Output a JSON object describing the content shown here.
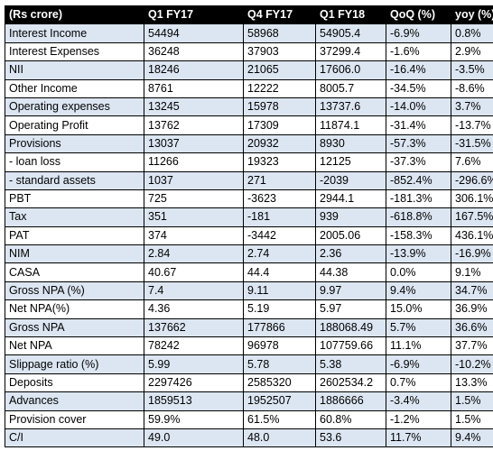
{
  "table": {
    "headers": [
      "(Rs crore)",
      "Q1 FY17",
      "Q4 FY17",
      "Q1 FY18",
      "QoQ (%)",
      "yoy (%)"
    ],
    "rows": [
      [
        "Interest Income",
        "54494",
        "58968",
        "54905.4",
        "-6.9%",
        "0.8%"
      ],
      [
        "Interest Expenses",
        "36248",
        "37903",
        "37299.4",
        "-1.6%",
        "2.9%"
      ],
      [
        "NII",
        "18246",
        "21065",
        "17606.0",
        "-16.4%",
        "-3.5%"
      ],
      [
        "Other Income",
        "8761",
        "12222",
        "8005.7",
        "-34.5%",
        "-8.6%"
      ],
      [
        "Operating expenses",
        "13245",
        "15978",
        "13737.6",
        "-14.0%",
        "3.7%"
      ],
      [
        "Operating Profit",
        "13762",
        "17309",
        "11874.1",
        "-31.4%",
        "-13.7%"
      ],
      [
        "Provisions",
        "13037",
        "20932",
        "8930",
        "-57.3%",
        "-31.5%"
      ],
      [
        "- loan loss",
        "11266",
        "19323",
        "12125",
        "-37.3%",
        "7.6%"
      ],
      [
        "- standard assets",
        "1037",
        "271",
        "-2039",
        "-852.4%",
        "-296.6%"
      ],
      [
        "PBT",
        "725",
        "-3623",
        "2944.1",
        "-181.3%",
        "306.1%"
      ],
      [
        "Tax",
        "351",
        "-181",
        "939",
        "-618.8%",
        "167.5%"
      ],
      [
        "PAT",
        "374",
        "-3442",
        "2005.06",
        "-158.3%",
        "436.1%"
      ],
      [
        "NIM",
        "2.84",
        "2.74",
        "2.36",
        "-13.9%",
        "-16.9%"
      ],
      [
        "CASA",
        "40.67",
        "44.4",
        "44.38",
        "0.0%",
        "9.1%"
      ],
      [
        "Gross NPA (%)",
        "7.4",
        "9.11",
        "9.97",
        "9.4%",
        "34.7%"
      ],
      [
        "Net NPA(%)",
        "4.36",
        "5.19",
        "5.97",
        "15.0%",
        "36.9%"
      ],
      [
        "Gross NPA",
        "137662",
        "177866",
        "188068.49",
        "5.7%",
        "36.6%"
      ],
      [
        "Net NPA",
        "78242",
        "96978",
        "107759.66",
        "11.1%",
        "37.7%"
      ],
      [
        "Slippage ratio (%)",
        "5.99",
        "5.78",
        "5.38",
        "-6.9%",
        "-10.2%"
      ],
      [
        "Deposits",
        "2297426",
        "2585320",
        "2602534.2",
        "0.7%",
        "13.3%"
      ],
      [
        "Advances",
        "1859513",
        "1952507",
        "1886666",
        "-3.4%",
        "1.5%"
      ],
      [
        "Provision cover",
        "59.9%",
        "61.5%",
        "60.8%",
        "-1.2%",
        "1.5%"
      ],
      [
        "C/I",
        "49.0",
        "48.0",
        "53.6",
        "11.7%",
        "9.4%"
      ]
    ]
  },
  "colors": {
    "header_bg": "#000000",
    "header_text": "#ffffff",
    "band_row": "#dce6f2",
    "plain_row": "#ffffff",
    "border": "#000000"
  }
}
